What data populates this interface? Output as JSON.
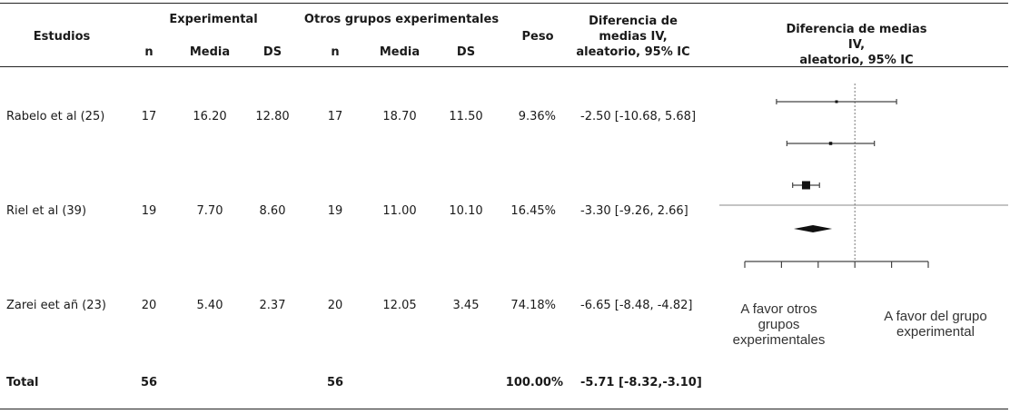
{
  "header": {
    "estudios": "Estudios",
    "experimental": "Experimental",
    "otros": "Otros grupos experimentales",
    "peso": "Peso",
    "diferencia": "Diferencia de\nmedias IV,\naleatorio, 95% IC",
    "diferencia_plot": "Diferencia de medias IV,\naleatorio, 95% IC",
    "sub_n1": "n",
    "sub_media1": "Media",
    "sub_ds1": "DS",
    "sub_n2": "n",
    "sub_media2": "Media",
    "sub_ds2": "DS"
  },
  "rows": [
    {
      "study": "Rabelo et al (25)",
      "n1": "17",
      "media1": "16.20",
      "ds1": "12.80",
      "n2": "17",
      "media2": "18.70",
      "ds2": "11.50",
      "peso": "9.36%",
      "ci": "-2.50 [-10.68, 5.68]"
    },
    {
      "study": "Riel et al (39)",
      "n1": "19",
      "media1": "7.70",
      "ds1": "8.60",
      "n2": "19",
      "media2": "11.00",
      "ds2": "10.10",
      "peso": "16.45%",
      "ci": "-3.30 [-9.26, 2.66]"
    },
    {
      "study": "Zarei eet añ (23)",
      "n1": "20",
      "media1": "5.40",
      "ds1": "2.37",
      "n2": "20",
      "media2": "12.05",
      "ds2": "3.45",
      "peso": "74.18%",
      "ci": "-6.65 [-8.48, -4.82]"
    }
  ],
  "total": {
    "label": "Total",
    "n1": "56",
    "n2": "56",
    "peso": "100.00%",
    "ci": "-5.71 [-8.32,-3.10]"
  },
  "forest": {
    "ticks": [
      "-15",
      "-10",
      "-5",
      "0",
      "5",
      "10"
    ],
    "favor_left": "A favor otros\ngrupos\nexperimentales",
    "favor_right": "A favor del grupo\nexperimental"
  },
  "chart_data": {
    "type": "forest",
    "xlim": [
      -15,
      10
    ],
    "studies": [
      {
        "est": -2.5,
        "lo": -10.68,
        "hi": 5.68
      },
      {
        "est": -3.3,
        "lo": -9.26,
        "hi": 2.66
      },
      {
        "est": -6.65,
        "lo": -8.48,
        "hi": -4.82
      }
    ],
    "pooled": {
      "est": -5.71,
      "lo": -8.32,
      "hi": -3.1
    }
  }
}
